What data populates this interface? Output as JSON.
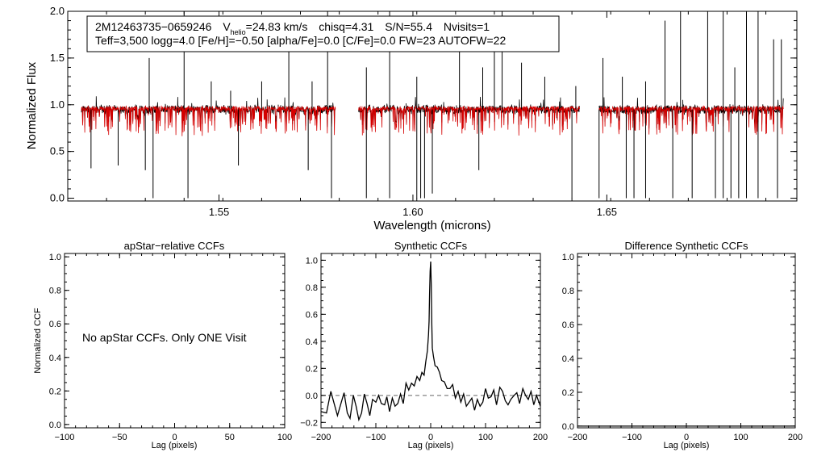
{
  "chart_data": [
    {
      "id": "spectrum",
      "type": "line",
      "title": "",
      "xlabel": "Wavelength (microns)",
      "ylabel": "Normalized Flux",
      "xlim": [
        1.511,
        1.699
      ],
      "ylim": [
        -0.03,
        2.0
      ],
      "xticks": [
        1.55,
        1.6,
        1.65
      ],
      "xticklabels": [
        "1.55",
        "1.60",
        "1.65"
      ],
      "yticks": [
        0.0,
        0.5,
        1.0,
        1.5,
        2.0
      ],
      "yticklabels": [
        "0.0",
        "0.5",
        "1.0",
        "1.5",
        "2.0"
      ],
      "chips": [
        [
          1.5145,
          1.58
        ],
        [
          1.586,
          1.643
        ],
        [
          1.648,
          1.6955
        ]
      ],
      "series": [
        {
          "name": "observed",
          "color": "#000000",
          "baseline": 0.95
        },
        {
          "name": "synthetic",
          "color": "#d40000",
          "baseline": 0.96
        }
      ],
      "spikes_down": [
        [
          1.517,
          0.32
        ],
        [
          1.524,
          0.35
        ],
        [
          1.531,
          0.3
        ],
        [
          1.533,
          0.0
        ],
        [
          1.542,
          0.0
        ],
        [
          1.555,
          0.35
        ],
        [
          1.573,
          0.3
        ],
        [
          1.579,
          0.0
        ],
        [
          1.588,
          0.0
        ],
        [
          1.594,
          0.0
        ],
        [
          1.601,
          0.0
        ],
        [
          1.602,
          0.0
        ],
        [
          1.603,
          0.0
        ],
        [
          1.605,
          0.05
        ],
        [
          1.617,
          0.3
        ],
        [
          1.641,
          0.0
        ],
        [
          1.648,
          0.0
        ],
        [
          1.655,
          0.0
        ],
        [
          1.657,
          0.0
        ],
        [
          1.66,
          0.0
        ],
        [
          1.667,
          0.0
        ],
        [
          1.672,
          0.0
        ],
        [
          1.678,
          0.0
        ],
        [
          1.68,
          0.0
        ],
        [
          1.682,
          0.0
        ],
        [
          1.684,
          0.0
        ],
        [
          1.686,
          0.0
        ],
        [
          1.689,
          0.0
        ],
        [
          1.694,
          0.0
        ]
      ],
      "spikes_up": [
        [
          1.532,
          1.5
        ],
        [
          1.541,
          2.0
        ],
        [
          1.548,
          1.25
        ],
        [
          1.553,
          1.15
        ],
        [
          1.561,
          1.25
        ],
        [
          1.568,
          1.7
        ],
        [
          1.574,
          1.25
        ],
        [
          1.578,
          2.0
        ],
        [
          1.588,
          1.4
        ],
        [
          1.594,
          2.0
        ],
        [
          1.601,
          1.3
        ],
        [
          1.612,
          1.85
        ],
        [
          1.618,
          1.4
        ],
        [
          1.621,
          1.7
        ],
        [
          1.623,
          2.0
        ],
        [
          1.628,
          1.45
        ],
        [
          1.634,
          1.3
        ],
        [
          1.642,
          1.2
        ],
        [
          1.649,
          1.5
        ],
        [
          1.654,
          1.3
        ],
        [
          1.66,
          1.25
        ],
        [
          1.665,
          1.9
        ],
        [
          1.669,
          2.0
        ],
        [
          1.676,
          2.0
        ],
        [
          1.68,
          2.0
        ],
        [
          1.683,
          1.4
        ],
        [
          1.686,
          2.0
        ],
        [
          1.689,
          2.0
        ],
        [
          1.693,
          1.7
        ],
        [
          1.695,
          1.7
        ]
      ]
    },
    {
      "id": "apstar",
      "type": "line",
      "title": "apStar−relative CCFs",
      "xlabel": "Lag (pixels)",
      "ylabel": "Normalized CCF",
      "xlim": [
        -100,
        100
      ],
      "ylim": [
        -0.02,
        1.02
      ],
      "xticks": [
        -100,
        -50,
        0,
        50,
        100
      ],
      "xticklabels": [
        "−100",
        "−50",
        "0",
        "50",
        "100"
      ],
      "yticks": [
        0.0,
        0.2,
        0.4,
        0.6,
        0.8,
        1.0
      ],
      "yticklabels": [
        "0.0",
        "0.2",
        "0.4",
        "0.6",
        "0.8",
        "1.0"
      ],
      "note": "No apStar CCFs.  Only ONE Visit"
    },
    {
      "id": "synthetic",
      "type": "line",
      "title": "Synthetic CCFs",
      "xlabel": "Lag (pixels)",
      "ylabel": "",
      "xlim": [
        -200,
        200
      ],
      "ylim": [
        -0.24,
        1.05
      ],
      "xticks": [
        -200,
        -100,
        0,
        100,
        200
      ],
      "xticklabels": [
        "−200",
        "−100",
        "0",
        "100",
        "200"
      ],
      "yticks": [
        -0.2,
        0.0,
        0.2,
        0.4,
        0.6,
        0.8,
        1.0
      ],
      "yticklabels": [
        "−0.2",
        "0.0",
        "0.2",
        "0.4",
        "0.6",
        "0.8",
        "1.0"
      ],
      "zero_line": 0.0,
      "x": [
        -200,
        -190,
        -182,
        -176,
        -170,
        -163,
        -158,
        -152,
        -147,
        -141,
        -136,
        -131,
        -126,
        -121,
        -116,
        -111,
        -106,
        -100,
        -95,
        -90,
        -84,
        -80,
        -75,
        -70,
        -65,
        -60,
        -55,
        -50,
        -45,
        -40,
        -35,
        -30,
        -25,
        -20,
        -16,
        -12,
        -9,
        -6,
        -4,
        -3,
        -2,
        -1,
        0,
        1,
        2,
        3,
        5,
        8,
        12,
        16,
        20,
        25,
        30,
        35,
        40,
        45,
        50,
        55,
        60,
        65,
        70,
        75,
        80,
        85,
        90,
        95,
        100,
        105,
        110,
        115,
        120,
        126,
        131,
        136,
        141,
        146,
        152,
        157,
        162,
        168,
        173,
        178,
        183,
        188,
        193,
        200
      ],
      "values": [
        -0.12,
        -0.13,
        0.03,
        -0.06,
        -0.15,
        -0.05,
        0.02,
        -0.13,
        -0.17,
        0.0,
        -0.08,
        -0.18,
        -0.13,
        0.01,
        -0.06,
        -0.15,
        -0.03,
        -0.05,
        0.0,
        -0.06,
        -0.07,
        -0.01,
        -0.12,
        -0.02,
        -0.08,
        -0.06,
        0.01,
        -0.06,
        0.09,
        0.04,
        0.09,
        0.07,
        0.14,
        0.11,
        0.17,
        0.15,
        0.25,
        0.33,
        0.45,
        0.55,
        0.75,
        0.92,
        0.99,
        0.82,
        0.52,
        0.35,
        0.29,
        0.22,
        0.21,
        0.17,
        0.11,
        0.1,
        0.05,
        0.05,
        0.08,
        -0.02,
        0.03,
        -0.05,
        0.01,
        -0.08,
        -0.05,
        -0.02,
        -0.11,
        -0.03,
        -0.08,
        -0.05,
        0.05,
        -0.02,
        -0.01,
        0.04,
        -0.07,
        0.06,
        0.03,
        -0.04,
        -0.07,
        -0.03,
        0.0,
        0.02,
        -0.06,
        0.05,
        0.0,
        -0.03,
        0.03,
        -0.07,
        0.0,
        -0.08
      ]
    },
    {
      "id": "difference",
      "type": "line",
      "title": "Difference Synthetic CCFs",
      "xlabel": "Lag (pixels)",
      "ylabel": "",
      "xlim": [
        -200,
        200
      ],
      "ylim": [
        -0.01,
        1.02
      ],
      "xticks": [
        -200,
        -100,
        0,
        100,
        200
      ],
      "xticklabels": [
        "−200",
        "−100",
        "0",
        "100",
        "200"
      ],
      "yticks": [
        0.0,
        0.2,
        0.4,
        0.6,
        0.8,
        1.0
      ],
      "yticklabels": [
        "0.0",
        "0.2",
        "0.4",
        "0.6",
        "0.8",
        "1.0"
      ],
      "values_constant": 0.0
    }
  ],
  "info": {
    "star_id": "2M12463735−0659246",
    "vhelio_prefix": "V",
    "vhelio_sub": "helio",
    "vhelio_value": "=24.83 km/s",
    "chisq": "chisq=4.31",
    "sn": "S/N=55.4",
    "nvisits": "Nvisits=1",
    "line2": "Teff=3,500 logg=4.0 [Fe/H]=−0.50 [alpha/Fe]=0.0 [C/Fe]=0.0 FW=23 AUTOFW=22"
  }
}
